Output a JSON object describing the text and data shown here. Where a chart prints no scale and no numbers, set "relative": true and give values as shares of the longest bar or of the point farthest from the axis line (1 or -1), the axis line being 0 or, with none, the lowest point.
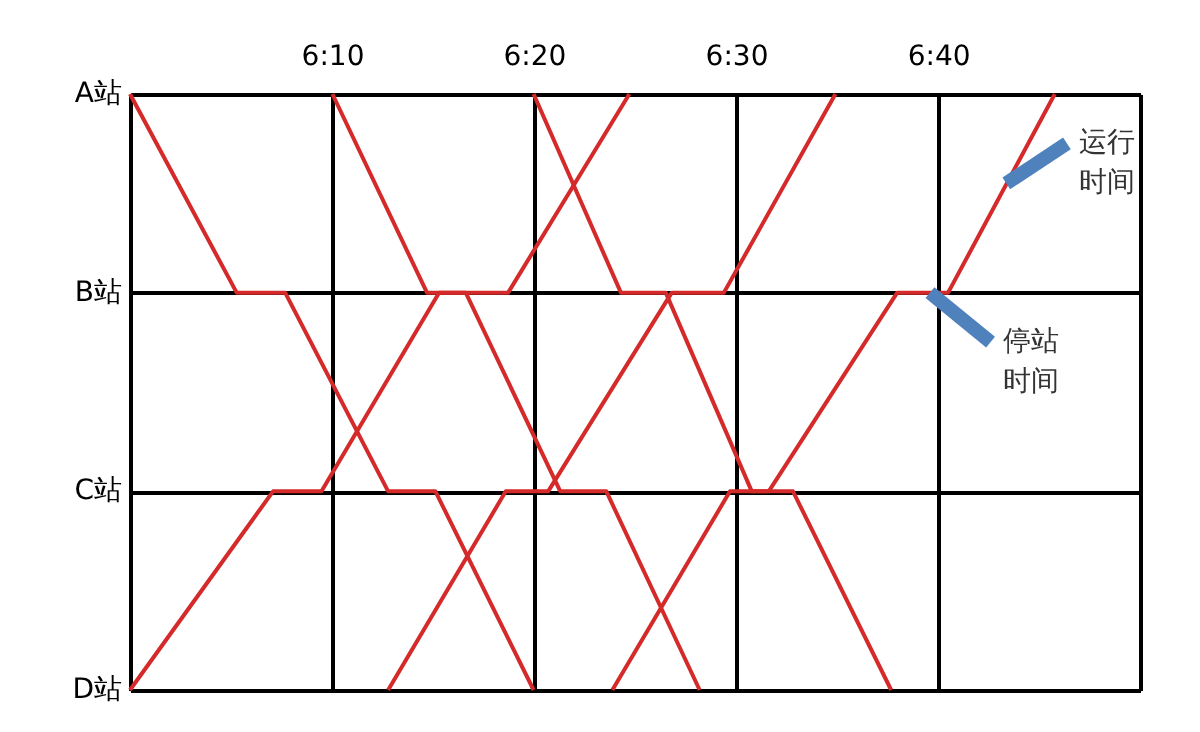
{
  "chart_data": {
    "type": "line",
    "relative": true,
    "xlim": [
      6.0,
      6.8333
    ],
    "xticks": [
      {
        "value": 6.0,
        "label": null
      },
      {
        "value": 6.1667,
        "label": "6:10"
      },
      {
        "value": 6.3333,
        "label": "6:20"
      },
      {
        "value": 6.5,
        "label": "6:30"
      },
      {
        "value": 6.6667,
        "label": "6:40"
      },
      {
        "value": 6.8333,
        "label": null
      }
    ],
    "grid": true,
    "legend": false,
    "marker": "none",
    "line_style": "solid",
    "series": [
      {
        "color": "#d42a2a",
        "x": [
          6.0,
          6.088,
          6.128,
          6.213,
          6.252,
          6.333
        ],
        "values": [
          1,
          0.6667,
          0.6667,
          0.3333,
          0.3333,
          0
        ]
      },
      {
        "color": "#d42a2a",
        "x": [
          6.167,
          6.245,
          6.277,
          6.355,
          6.393,
          6.47
        ],
        "values": [
          1,
          0.6667,
          0.6667,
          0.3333,
          0.3333,
          0
        ]
      },
      {
        "color": "#d42a2a",
        "x": [
          6.333,
          6.405,
          6.442,
          6.513,
          6.547,
          6.628
        ],
        "values": [
          1,
          0.6667,
          0.6667,
          0.3333,
          0.3333,
          0
        ]
      },
      {
        "color": "#d42a2a",
        "x": [
          6.0,
          6.118,
          6.158,
          6.255,
          6.312,
          6.412
        ],
        "values": [
          0,
          0.3333,
          0.3333,
          0.6667,
          0.6667,
          1
        ]
      },
      {
        "color": "#d42a2a",
        "x": [
          6.213,
          6.31,
          6.345,
          6.447,
          6.49,
          6.582
        ],
        "values": [
          0,
          0.3333,
          0.3333,
          0.6667,
          0.6667,
          1
        ]
      },
      {
        "color": "#d42a2a",
        "x": [
          6.398,
          6.495,
          6.527,
          6.633,
          6.675,
          6.763
        ],
        "values": [
          0,
          0.3333,
          0.3333,
          0.6667,
          0.6667,
          1
        ]
      }
    ],
    "annotations": [
      "A站",
      "B站",
      "C站",
      "D站",
      {
        "text": "运行时间",
        "x": 6.723,
        "y": 0.85
      },
      {
        "text": "停站时间",
        "x": 6.66,
        "y": 0.6667
      }
    ]
  }
}
